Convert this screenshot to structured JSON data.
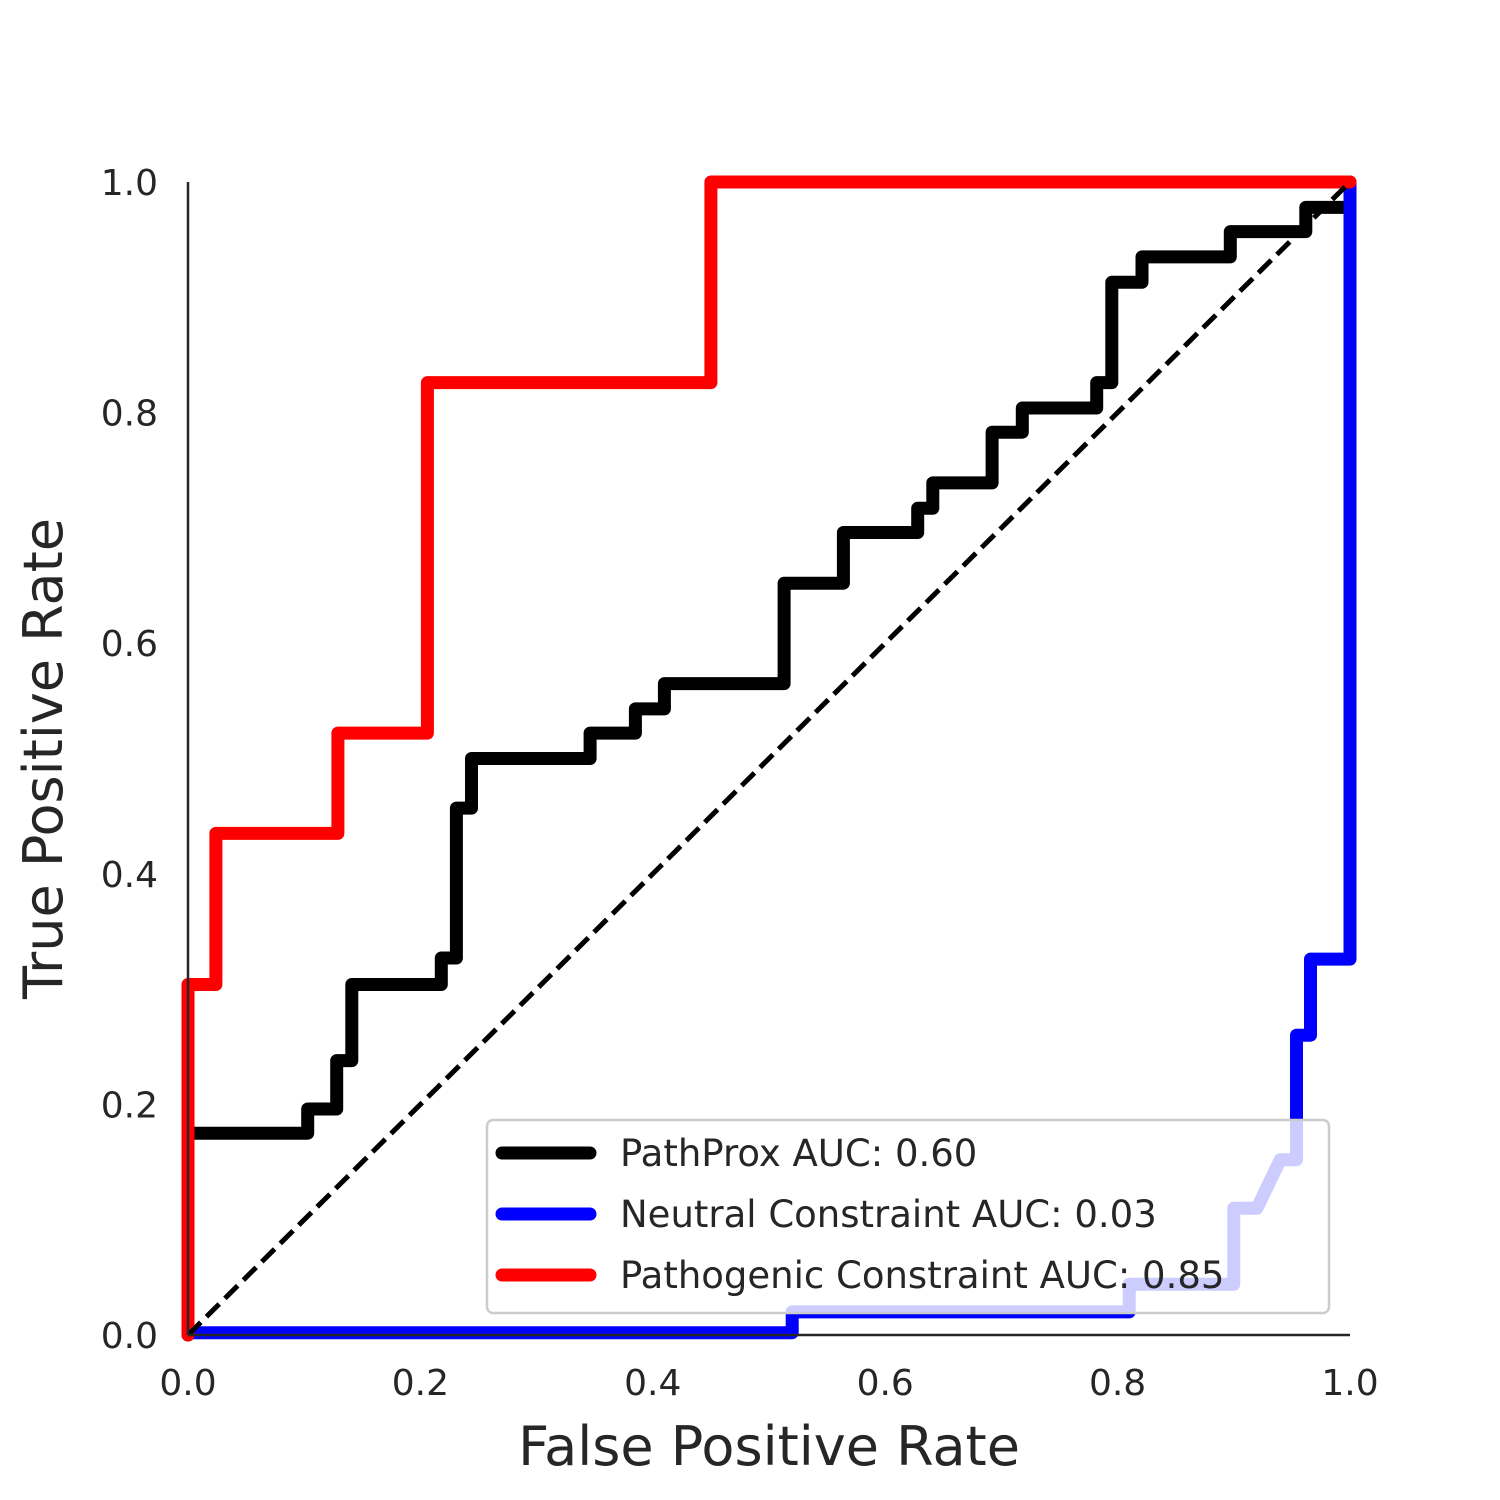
{
  "chart_data": {
    "type": "line",
    "xlabel": "False Positive Rate",
    "ylabel": "True Positive Rate",
    "xlim": [
      0.0,
      1.0
    ],
    "ylim": [
      0.0,
      1.0
    ],
    "xticks": [
      "0.0",
      "0.2",
      "0.4",
      "0.6",
      "0.8",
      "1.0"
    ],
    "yticks": [
      "0.0",
      "0.2",
      "0.4",
      "0.6",
      "0.8",
      "1.0"
    ],
    "grid": false,
    "legend_position": "lower-right",
    "series": [
      {
        "name": "PathProx AUC:  0.60",
        "color": "#000000",
        "step": true,
        "x": [
          0.0,
          0.0,
          0.103,
          0.103,
          0.128,
          0.128,
          0.141,
          0.141,
          0.218,
          0.218,
          0.231,
          0.231,
          0.244,
          0.244,
          0.346,
          0.346,
          0.385,
          0.385,
          0.41,
          0.41,
          0.513,
          0.513,
          0.564,
          0.564,
          0.628,
          0.628,
          0.641,
          0.641,
          0.692,
          0.692,
          0.718,
          0.718,
          0.782,
          0.782,
          0.795,
          0.795,
          0.821,
          0.821,
          0.897,
          0.897,
          0.962,
          0.962,
          1.0
        ],
        "y": [
          0.0,
          0.175,
          0.175,
          0.196,
          0.196,
          0.238,
          0.238,
          0.304,
          0.304,
          0.327,
          0.327,
          0.457,
          0.457,
          0.5,
          0.5,
          0.522,
          0.522,
          0.543,
          0.543,
          0.565,
          0.565,
          0.652,
          0.652,
          0.696,
          0.696,
          0.717,
          0.717,
          0.739,
          0.739,
          0.783,
          0.783,
          0.804,
          0.804,
          0.826,
          0.826,
          0.913,
          0.913,
          0.935,
          0.935,
          0.957,
          0.957,
          0.978,
          0.978
        ]
      },
      {
        "name": "Neutral Constraint AUC:  0.03",
        "color": "#0000ff",
        "step": true,
        "x": [
          0.0,
          0.52,
          0.52,
          0.81,
          0.81,
          0.9,
          0.9,
          0.92,
          0.94,
          0.954,
          0.954,
          0.966,
          0.966,
          1.0,
          1.0
        ],
        "y": [
          0.002,
          0.002,
          0.02,
          0.02,
          0.044,
          0.044,
          0.11,
          0.11,
          0.152,
          0.152,
          0.26,
          0.26,
          0.326,
          0.326,
          1.0
        ]
      },
      {
        "name": "Pathogenic Constraint AUC:  0.85",
        "color": "#ff0000",
        "step": true,
        "x": [
          0.0,
          0.0,
          0.024,
          0.024,
          0.129,
          0.129,
          0.206,
          0.206,
          0.45,
          0.45,
          1.0
        ],
        "y": [
          0.0,
          0.304,
          0.304,
          0.435,
          0.435,
          0.522,
          0.522,
          0.826,
          0.826,
          1.0,
          1.0
        ]
      },
      {
        "name": "",
        "color": "#000000",
        "dashed": true,
        "x": [
          0.0,
          1.0
        ],
        "y": [
          0.0,
          1.0
        ]
      }
    ]
  }
}
